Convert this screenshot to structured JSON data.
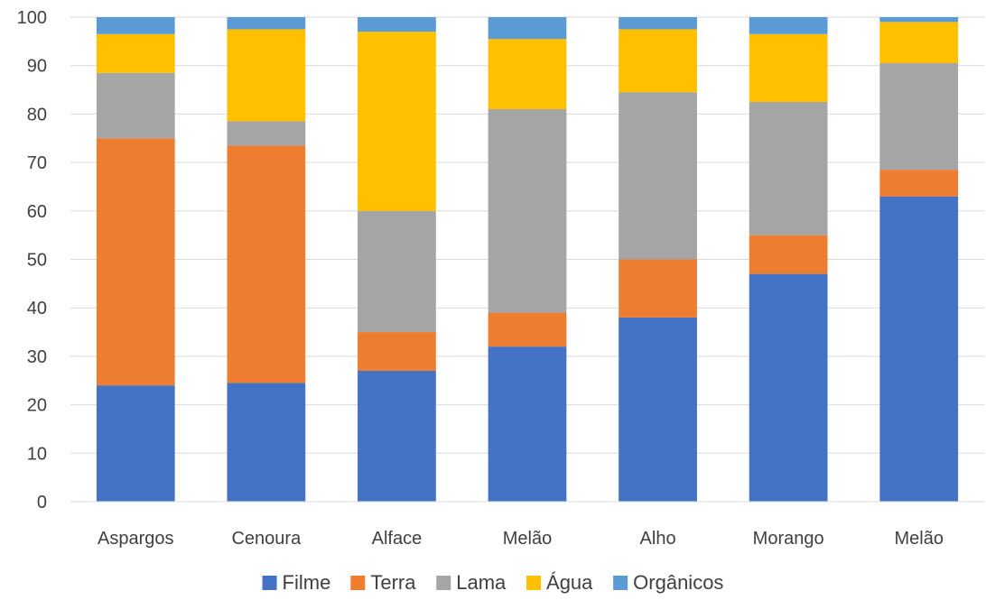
{
  "chart_data": {
    "type": "bar",
    "stacked": true,
    "categories": [
      "Aspargos",
      "Cenoura",
      "Alface",
      "Melão",
      "Alho",
      "Morango",
      "Melão"
    ],
    "series": [
      {
        "name": "Filme",
        "color": "#4472C4",
        "values": [
          24,
          24.5,
          27,
          32,
          38,
          47,
          63
        ]
      },
      {
        "name": "Terra",
        "color": "#ED7D31",
        "values": [
          51,
          49,
          8,
          7,
          12,
          8,
          5.5
        ]
      },
      {
        "name": "Lama",
        "color": "#A5A5A5",
        "values": [
          13.5,
          5,
          25,
          42,
          34.5,
          27.5,
          22
        ]
      },
      {
        "name": "Água",
        "color": "#FFC000",
        "values": [
          8,
          19,
          37,
          14.5,
          13,
          14,
          8.5
        ]
      },
      {
        "name": "Orgânicos",
        "color": "#5B9BD5",
        "values": [
          3.5,
          2.5,
          3,
          4.5,
          2.5,
          3.5,
          1
        ]
      }
    ],
    "ylim": [
      0,
      100
    ],
    "yticks": [
      0,
      10,
      20,
      30,
      40,
      50,
      60,
      70,
      80,
      90,
      100
    ],
    "grid": true,
    "legend_position": "bottom",
    "title": "",
    "xlabel": "",
    "ylabel": ""
  }
}
